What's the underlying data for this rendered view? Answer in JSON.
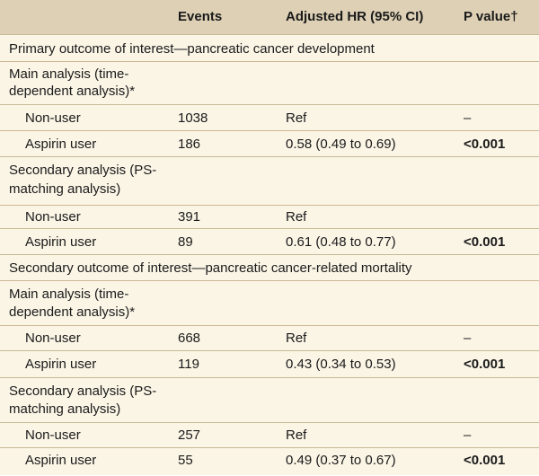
{
  "header": {
    "col_label": "",
    "col_events": "Events",
    "col_hr": "Adjusted HR (95% CI)",
    "col_p": "P value†"
  },
  "primary": {
    "title": "Primary outcome of interest—pancreatic cancer development",
    "main": {
      "label_line1": "Main analysis (time-",
      "label_line2": "dependent analysis)*",
      "nonuser": {
        "label": "Non-user",
        "events": "1038",
        "hr": "Ref",
        "p": "–"
      },
      "aspirin": {
        "label": "Aspirin user",
        "events": "186",
        "hr": "0.58 (0.49 to 0.69)",
        "p": "<0.001"
      }
    },
    "secondary": {
      "label_line1": "Secondary analysis (PS-",
      "label_line2": "matching analysis)",
      "nonuser": {
        "label": "Non-user",
        "events": "391",
        "hr": "Ref",
        "p": ""
      },
      "aspirin": {
        "label": "Aspirin user",
        "events": "89",
        "hr": "0.61 (0.48 to 0.77)",
        "p": "<0.001"
      }
    }
  },
  "secondary_outcome": {
    "title": "Secondary outcome of interest—pancreatic cancer-related mortality",
    "main": {
      "label_line1": "Main analysis (time-",
      "label_line2": "dependent analysis)*",
      "nonuser": {
        "label": "Non-user",
        "events": "668",
        "hr": "Ref",
        "p": "–"
      },
      "aspirin": {
        "label": "Aspirin user",
        "events": "119",
        "hr": "0.43 (0.34 to 0.53)",
        "p": "<0.001"
      }
    },
    "secondary": {
      "label_line1": "Secondary analysis (PS-",
      "label_line2": "matching analysis)",
      "nonuser": {
        "label": "Non-user",
        "events": "257",
        "hr": "Ref",
        "p": "–"
      },
      "aspirin": {
        "label": "Aspirin user",
        "events": "55",
        "hr": "0.49 (0.37 to 0.67)",
        "p": "<0.001"
      }
    }
  },
  "colors": {
    "header_bg": "#ddd0b5",
    "body_bg": "#fbf5e6",
    "rule": "#c9b996"
  }
}
